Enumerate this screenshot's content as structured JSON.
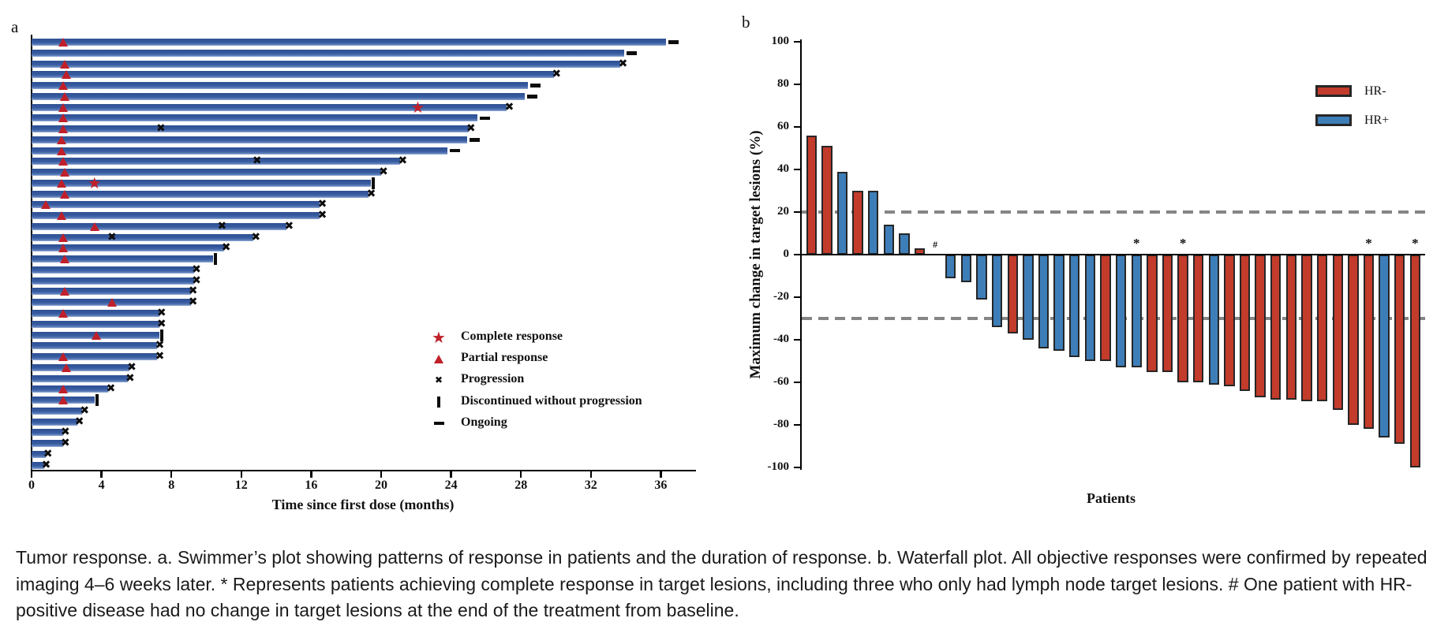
{
  "colors": {
    "swimmer_bar_blue": "#35599d",
    "response_marker_red": "#c0202a",
    "marker_black": "#0d0d0d",
    "hr_negative_red": "#c23b2b",
    "hr_positive_blue": "#3d7eb8",
    "dashed_reference_gray": "#858585"
  },
  "chart_data": [
    {
      "type": "bar",
      "subtype": "swimmer-plot",
      "panel_label": "a",
      "orientation": "horizontal",
      "xlabel": "Time since first dose (months)",
      "xlim": [
        0,
        38
      ],
      "x_ticks": [
        0,
        4,
        8,
        12,
        16,
        20,
        24,
        28,
        32,
        36
      ],
      "legend": [
        {
          "marker": "star",
          "color": "#c0202a",
          "label": "Complete response"
        },
        {
          "marker": "triangle",
          "color": "#c0202a",
          "label": "Partial response"
        },
        {
          "marker": "x",
          "color": "#0d0d0d",
          "label": "Progression"
        },
        {
          "marker": "vbar",
          "color": "#0d0d0d",
          "label": "Discontinued without progression"
        },
        {
          "marker": "dash",
          "color": "#0d0d0d",
          "label": "Ongoing"
        }
      ],
      "patients": [
        {
          "len": 36.3,
          "pr": 1.8,
          "end": "ongoing"
        },
        {
          "len": 33.9,
          "end": "ongoing"
        },
        {
          "len": 33.7,
          "pr": 1.9,
          "end": "progression"
        },
        {
          "len": 29.9,
          "pr": 2.0,
          "end": "progression"
        },
        {
          "len": 28.4,
          "pr": 1.8,
          "end": "ongoing"
        },
        {
          "len": 28.2,
          "pr": 1.9,
          "end": "ongoing"
        },
        {
          "len": 27.2,
          "pr": 1.8,
          "cr": 22.1,
          "end": "progression"
        },
        {
          "len": 25.5,
          "pr": 1.8,
          "end": "ongoing"
        },
        {
          "len": 25.0,
          "pr": 1.8,
          "x": [
            7.4
          ],
          "end": "progression"
        },
        {
          "len": 24.9,
          "pr": 1.7,
          "end": "ongoing"
        },
        {
          "len": 23.8,
          "pr": 1.7,
          "end": "ongoing"
        },
        {
          "len": 21.1,
          "pr": 1.8,
          "x": [
            12.9
          ],
          "end": "progression"
        },
        {
          "len": 20.0,
          "pr": 1.9,
          "end": "progression"
        },
        {
          "len": 19.4,
          "pr": 1.7,
          "cr": 3.6,
          "end": "discontinued"
        },
        {
          "len": 19.3,
          "pr": 1.9,
          "end": "progression"
        },
        {
          "len": 16.5,
          "pr": 0.8,
          "end": "progression"
        },
        {
          "len": 16.5,
          "pr": 1.7,
          "end": "progression"
        },
        {
          "len": 14.6,
          "pr": 3.6,
          "x": [
            10.9
          ],
          "end": "progression"
        },
        {
          "len": 12.7,
          "pr": 1.8,
          "x": [
            4.6
          ],
          "end": "progression"
        },
        {
          "len": 11.0,
          "pr": 1.8,
          "end": "progression"
        },
        {
          "len": 10.4,
          "pr": 1.9,
          "end": "discontinued"
        },
        {
          "len": 9.3,
          "end": "progression"
        },
        {
          "len": 9.3,
          "end": "progression"
        },
        {
          "len": 9.1,
          "pr": 1.9,
          "end": "progression"
        },
        {
          "len": 9.1,
          "pr": 4.6,
          "end": "progression"
        },
        {
          "len": 7.3,
          "pr": 1.8,
          "end": "progression"
        },
        {
          "len": 7.3,
          "end": "progression"
        },
        {
          "len": 7.3,
          "pr": 3.7,
          "end": "discontinued"
        },
        {
          "len": 7.2,
          "end": "progression"
        },
        {
          "len": 7.2,
          "pr": 1.8,
          "end": "progression"
        },
        {
          "len": 5.6,
          "pr": 2.0,
          "end": "progression"
        },
        {
          "len": 5.5,
          "end": "progression"
        },
        {
          "len": 4.4,
          "pr": 1.8,
          "end": "progression"
        },
        {
          "len": 3.6,
          "pr": 1.8,
          "end": "discontinued"
        },
        {
          "len": 2.9,
          "end": "progression"
        },
        {
          "len": 2.6,
          "end": "progression"
        },
        {
          "len": 1.8,
          "end": "progression"
        },
        {
          "len": 1.8,
          "end": "progression"
        },
        {
          "len": 0.8,
          "end": "progression"
        },
        {
          "len": 0.7,
          "end": "progression"
        }
      ]
    },
    {
      "type": "bar",
      "subtype": "waterfall-plot",
      "panel_label": "b",
      "ylabel": "Maximum change in target lesions (%)",
      "xlabel": "Patients",
      "ylim": [
        -100,
        100
      ],
      "y_ticks": [
        100,
        80,
        60,
        40,
        20,
        0,
        -20,
        -40,
        -60,
        -80,
        -100
      ],
      "reference_lines": [
        20,
        -30
      ],
      "legend": [
        {
          "label": "HR-",
          "color": "#c23b2b"
        },
        {
          "label": "HR+",
          "color": "#3d7eb8"
        }
      ],
      "patients": [
        {
          "value": 56,
          "group": "HR-"
        },
        {
          "value": 51,
          "group": "HR-"
        },
        {
          "value": 39,
          "group": "HR+"
        },
        {
          "value": 30,
          "group": "HR-"
        },
        {
          "value": 30,
          "group": "HR+"
        },
        {
          "value": 14,
          "group": "HR+"
        },
        {
          "value": 10,
          "group": "HR+"
        },
        {
          "value": 3,
          "group": "HR-"
        },
        {
          "value": 0,
          "group": "HR+",
          "annotation": "#"
        },
        {
          "value": -11,
          "group": "HR+"
        },
        {
          "value": -13,
          "group": "HR+"
        },
        {
          "value": -21,
          "group": "HR+"
        },
        {
          "value": -34,
          "group": "HR+"
        },
        {
          "value": -37,
          "group": "HR-"
        },
        {
          "value": -40,
          "group": "HR+"
        },
        {
          "value": -44,
          "group": "HR+"
        },
        {
          "value": -45,
          "group": "HR+"
        },
        {
          "value": -48,
          "group": "HR+"
        },
        {
          "value": -50,
          "group": "HR+"
        },
        {
          "value": -50,
          "group": "HR-"
        },
        {
          "value": -53,
          "group": "HR+"
        },
        {
          "value": -53,
          "group": "HR+",
          "annotation": "*"
        },
        {
          "value": -55,
          "group": "HR-"
        },
        {
          "value": -55,
          "group": "HR-"
        },
        {
          "value": -60,
          "group": "HR-",
          "annotation": "*"
        },
        {
          "value": -60,
          "group": "HR-"
        },
        {
          "value": -61,
          "group": "HR+"
        },
        {
          "value": -62,
          "group": "HR-"
        },
        {
          "value": -64,
          "group": "HR-"
        },
        {
          "value": -67,
          "group": "HR-"
        },
        {
          "value": -68,
          "group": "HR-"
        },
        {
          "value": -68,
          "group": "HR-"
        },
        {
          "value": -69,
          "group": "HR-"
        },
        {
          "value": -69,
          "group": "HR-"
        },
        {
          "value": -73,
          "group": "HR-"
        },
        {
          "value": -80,
          "group": "HR-"
        },
        {
          "value": -82,
          "group": "HR-",
          "annotation": "*"
        },
        {
          "value": -86,
          "group": "HR+"
        },
        {
          "value": -89,
          "group": "HR-"
        },
        {
          "value": -100,
          "group": "HR-",
          "annotation": "*"
        }
      ]
    }
  ],
  "caption": {
    "text": "Tumor response. a. Swimmer’s plot showing patterns of response in patients and the duration of response. b. Waterfall plot. All objective responses were confirmed by repeated imaging 4–6 weeks later. * Represents patients achieving complete response in target lesions, including three who only had lymph node target lesions. # One patient with HR-positive disease had no change in target lesions at the end of the treatment from baseline."
  }
}
